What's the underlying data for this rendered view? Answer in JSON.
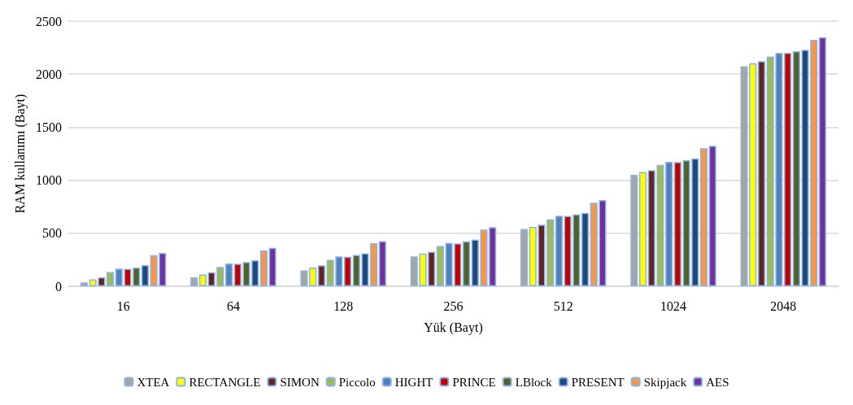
{
  "chart_data": {
    "type": "bar",
    "xlabel": "Yük (Bayt)",
    "ylabel": "RAM kullanımı (Bayt)",
    "categories": [
      "16",
      "64",
      "128",
      "256",
      "512",
      "1024",
      "2048"
    ],
    "ylim": [
      0,
      2500
    ],
    "yticks": [
      0,
      500,
      1000,
      1500,
      2000,
      2500
    ],
    "grid": "y",
    "legend": "bottom",
    "series": [
      {
        "name": "XTEA",
        "color": "#a5a5a5",
        "values": [
          37,
          84,
          150,
          281,
          540,
          1050,
          2074
        ]
      },
      {
        "name": "RECTANGLE",
        "color": "#ffff00",
        "values": [
          66,
          111,
          177,
          308,
          560,
          1077,
          2103
        ]
      },
      {
        "name": "SIMON",
        "color": "#632523",
        "values": [
          84,
          133,
          197,
          325,
          580,
          1094,
          2123
        ]
      },
      {
        "name": "Piccolo",
        "color": "#9bbb59",
        "values": [
          135,
          182,
          249,
          379,
          631,
          1145,
          2167
        ]
      },
      {
        "name": "HIGHT",
        "color": "#4f81bd",
        "values": [
          167,
          214,
          281,
          409,
          666,
          1174,
          2201
        ]
      },
      {
        "name": "PRINCE",
        "color": "#c00000",
        "values": [
          165,
          212,
          278,
          404,
          663,
          1172,
          2201
        ]
      },
      {
        "name": "LBlock",
        "color": "#4f6228",
        "values": [
          177,
          229,
          296,
          424,
          678,
          1189,
          2216
        ]
      },
      {
        "name": "PRESENT",
        "color": "#1f497d",
        "values": [
          200,
          246,
          310,
          441,
          692,
          1206,
          2230
        ]
      },
      {
        "name": "Skipjack",
        "color": "#f79646",
        "values": [
          293,
          337,
          406,
          534,
          788,
          1302,
          2324
        ]
      },
      {
        "name": "AES",
        "color": "#7030a0",
        "values": [
          315,
          362,
          426,
          557,
          812,
          1324,
          2348
        ]
      }
    ]
  }
}
